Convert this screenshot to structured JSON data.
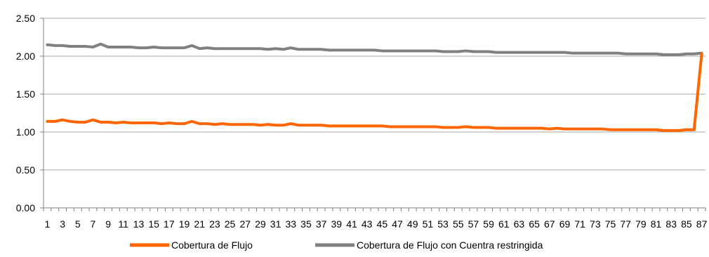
{
  "chart_data": {
    "type": "line",
    "title": "",
    "xlabel": "",
    "ylabel": "",
    "ylim": [
      0,
      2.5
    ],
    "yticks": [
      "0.00",
      "0.50",
      "1.00",
      "1.50",
      "2.00",
      "2.50"
    ],
    "ytick_values": [
      0,
      0.5,
      1,
      1.5,
      2,
      2.5
    ],
    "x": [
      1,
      2,
      3,
      4,
      5,
      6,
      7,
      8,
      9,
      10,
      11,
      12,
      13,
      14,
      15,
      16,
      17,
      18,
      19,
      20,
      21,
      22,
      23,
      24,
      25,
      26,
      27,
      28,
      29,
      30,
      31,
      32,
      33,
      34,
      35,
      36,
      37,
      38,
      39,
      40,
      41,
      42,
      43,
      44,
      45,
      46,
      47,
      48,
      49,
      50,
      51,
      52,
      53,
      54,
      55,
      56,
      57,
      58,
      59,
      60,
      61,
      62,
      63,
      64,
      65,
      66,
      67,
      68,
      69,
      70,
      71,
      72,
      73,
      74,
      75,
      76,
      77,
      78,
      79,
      80,
      81,
      82,
      83,
      84,
      85,
      86,
      87
    ],
    "xtick_labels": [
      "1",
      "3",
      "5",
      "7",
      "9",
      "11",
      "13",
      "15",
      "17",
      "19",
      "21",
      "23",
      "25",
      "27",
      "29",
      "31",
      "33",
      "35",
      "37",
      "39",
      "41",
      "43",
      "45",
      "47",
      "49",
      "51",
      "53",
      "55",
      "57",
      "59",
      "61",
      "63",
      "65",
      "67",
      "69",
      "71",
      "73",
      "75",
      "77",
      "79",
      "81",
      "83",
      "85",
      "87"
    ],
    "grid": "horizontal",
    "legend": "bottom",
    "series": [
      {
        "name": "Cobertura de Flujo",
        "color": "#ff6600",
        "values": [
          1.14,
          1.14,
          1.16,
          1.14,
          1.13,
          1.13,
          1.16,
          1.13,
          1.13,
          1.12,
          1.13,
          1.12,
          1.12,
          1.12,
          1.12,
          1.11,
          1.12,
          1.11,
          1.11,
          1.14,
          1.11,
          1.11,
          1.1,
          1.11,
          1.1,
          1.1,
          1.1,
          1.1,
          1.09,
          1.1,
          1.09,
          1.09,
          1.11,
          1.09,
          1.09,
          1.09,
          1.09,
          1.08,
          1.08,
          1.08,
          1.08,
          1.08,
          1.08,
          1.08,
          1.08,
          1.07,
          1.07,
          1.07,
          1.07,
          1.07,
          1.07,
          1.07,
          1.06,
          1.06,
          1.06,
          1.07,
          1.06,
          1.06,
          1.06,
          1.05,
          1.05,
          1.05,
          1.05,
          1.05,
          1.05,
          1.05,
          1.04,
          1.05,
          1.04,
          1.04,
          1.04,
          1.04,
          1.04,
          1.04,
          1.03,
          1.03,
          1.03,
          1.03,
          1.03,
          1.03,
          1.03,
          1.02,
          1.02,
          1.02,
          1.03,
          1.03,
          2.03
        ]
      },
      {
        "name": "Cobertura de Flujo con Cuentra restringida",
        "color": "#808080",
        "values": [
          2.15,
          2.14,
          2.14,
          2.13,
          2.13,
          2.13,
          2.12,
          2.16,
          2.12,
          2.12,
          2.12,
          2.12,
          2.11,
          2.11,
          2.12,
          2.11,
          2.11,
          2.11,
          2.11,
          2.14,
          2.1,
          2.11,
          2.1,
          2.1,
          2.1,
          2.1,
          2.1,
          2.1,
          2.1,
          2.09,
          2.1,
          2.09,
          2.11,
          2.09,
          2.09,
          2.09,
          2.09,
          2.08,
          2.08,
          2.08,
          2.08,
          2.08,
          2.08,
          2.08,
          2.07,
          2.07,
          2.07,
          2.07,
          2.07,
          2.07,
          2.07,
          2.07,
          2.06,
          2.06,
          2.06,
          2.07,
          2.06,
          2.06,
          2.06,
          2.05,
          2.05,
          2.05,
          2.05,
          2.05,
          2.05,
          2.05,
          2.05,
          2.05,
          2.05,
          2.04,
          2.04,
          2.04,
          2.04,
          2.04,
          2.04,
          2.04,
          2.03,
          2.03,
          2.03,
          2.03,
          2.03,
          2.02,
          2.02,
          2.02,
          2.03,
          2.03,
          2.04
        ]
      }
    ]
  }
}
